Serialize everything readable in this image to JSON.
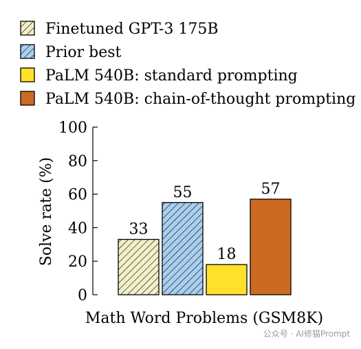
{
  "chart_data": {
    "type": "bar",
    "xlabel": "Math Word Problems (GSM8K)",
    "ylabel": "Solve rate (%)",
    "ylim": [
      0,
      100
    ],
    "yticks": [
      0,
      20,
      40,
      60,
      80,
      100
    ],
    "legend_position": "top",
    "series": [
      {
        "name": "Finetuned GPT-3 175B",
        "value": 33,
        "label": "33",
        "color": "#f3efc8",
        "pattern": "hatch"
      },
      {
        "name": "Prior best",
        "value": 55,
        "label": "55",
        "color": "#a9cff0",
        "pattern": "hatch"
      },
      {
        "name": "PaLM 540B: standard prompting",
        "value": 18,
        "label": "18",
        "color": "#ffe02a",
        "pattern": "solid"
      },
      {
        "name": "PaLM 540B: chain-of-thought prompting",
        "value": 57,
        "label": "57",
        "color": "#cc6a22",
        "pattern": "solid"
      }
    ]
  },
  "watermark": "公众号 · AI修猫Prompt"
}
